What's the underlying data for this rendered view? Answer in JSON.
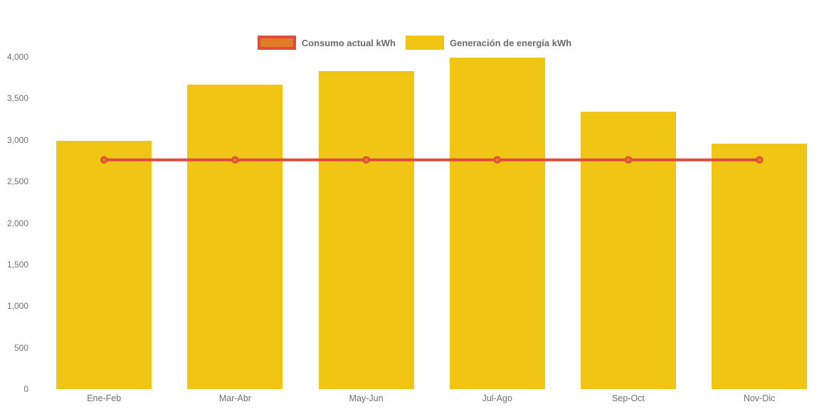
{
  "chart_data": {
    "type": "bar",
    "title": "",
    "categories": [
      "Ene-Feb",
      "Mar-Abr",
      "May-Jun",
      "Jul-Ago",
      "Sep-Oct",
      "Nov-Dic"
    ],
    "series": [
      {
        "name": "Consumo actual kWh",
        "type": "line",
        "values": [
          2760,
          2760,
          2760,
          2760,
          2760,
          2760
        ],
        "line_color": "#E04C3B",
        "point_fill_color": "#E07C28",
        "point_border_color": "#E04C3B"
      },
      {
        "name": "Generación de energía kWh",
        "type": "bar",
        "values": [
          2985,
          3660,
          3825,
          3990,
          3340,
          2955
        ],
        "bar_color": "#F0C514"
      }
    ],
    "xlabel": "",
    "ylabel": "",
    "ylim": [
      0,
      4000
    ],
    "ytick_values": [
      0,
      500,
      1000,
      1500,
      2000,
      2500,
      3000,
      3500,
      4000
    ],
    "ytick_labels": [
      "0",
      "500",
      "1,000",
      "1,500",
      "2,000",
      "2,500",
      "3,000",
      "3,500",
      "4,000"
    ],
    "grid": "off",
    "legend_position": "top-center",
    "axis_text_color": "#6E6E6E",
    "legend_text_color": "#6A6A6A"
  }
}
